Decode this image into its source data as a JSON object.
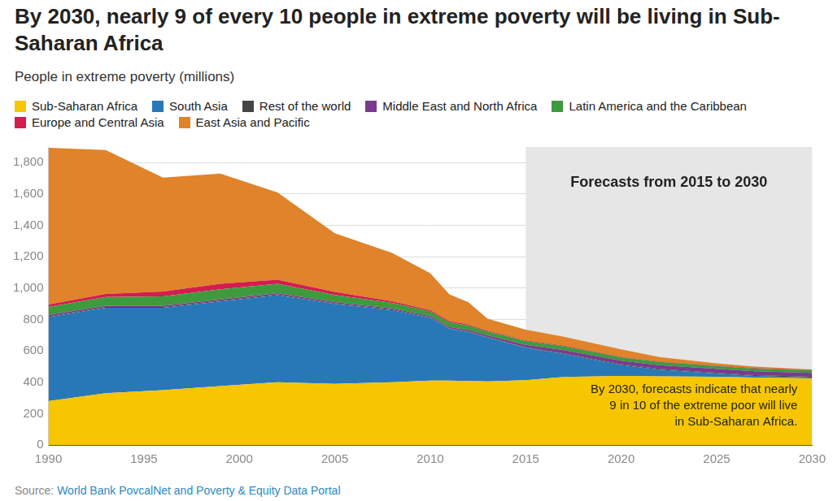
{
  "chart_data": {
    "type": "area",
    "title": "By 2030, nearly 9 of every 10 people in extreme poverty will be living in Sub-Saharan Africa",
    "subtitle": "People in extreme poverty (millions)",
    "x": [
      1990,
      1993,
      1996,
      1999,
      2002,
      2005,
      2008,
      2010,
      2011,
      2012,
      2013,
      2015,
      2017,
      2020,
      2022,
      2025,
      2027,
      2030
    ],
    "series": [
      {
        "name": "Sub-Saharan Africa",
        "color": "#f7c600",
        "values": [
          280,
          330,
          350,
          375,
          400,
          390,
          400,
          410,
          410,
          408,
          405,
          413,
          433,
          440,
          438,
          435,
          430,
          425
        ]
      },
      {
        "name": "South Asia",
        "color": "#2878b8",
        "values": [
          535,
          545,
          525,
          540,
          555,
          510,
          460,
          400,
          330,
          312,
          280,
          207,
          147,
          70,
          42,
          20,
          10,
          5
        ]
      },
      {
        "name": "Rest of the world",
        "color": "#454545",
        "values": [
          5,
          5,
          5,
          5,
          5,
          4,
          4,
          4,
          3,
          3,
          3,
          3,
          4,
          5,
          5,
          5,
          5,
          5
        ]
      },
      {
        "name": "Middle East and North Africa",
        "color": "#7b3a8f",
        "values": [
          10,
          8,
          8,
          8,
          8,
          7,
          7,
          8,
          9,
          10,
          11,
          15,
          20,
          22,
          24,
          25,
          25,
          25
        ]
      },
      {
        "name": "Latin America and the Caribbean",
        "color": "#3f9a3d",
        "values": [
          50,
          55,
          60,
          65,
          60,
          45,
          35,
          30,
          30,
          28,
          25,
          25,
          25,
          22,
          20,
          18,
          17,
          16
        ]
      },
      {
        "name": "Europe and Central Asia",
        "color": "#d51c4f",
        "values": [
          15,
          20,
          30,
          35,
          25,
          20,
          10,
          8,
          7,
          6,
          5,
          4,
          4,
          3,
          3,
          3,
          3,
          3
        ]
      },
      {
        "name": "East Asia and Pacific",
        "color": "#e0832a",
        "values": [
          1000,
          917,
          727,
          702,
          557,
          374,
          309,
          235,
          171,
          143,
          76,
          68,
          57,
          48,
          28,
          14,
          10,
          2
        ]
      }
    ],
    "xlim": [
      1990,
      2030
    ],
    "xticks": [
      1990,
      1995,
      2000,
      2005,
      2010,
      2015,
      2020,
      2025,
      2030
    ],
    "ylim": [
      0,
      1900
    ],
    "yticks": [
      0,
      200,
      400,
      600,
      800,
      {
        "value": 1000,
        "label": "1,000"
      },
      {
        "value": 1200,
        "label": "1,200"
      },
      {
        "value": 1400,
        "label": "1,400"
      },
      {
        "value": 1600,
        "label": "1,600"
      },
      {
        "value": 1800,
        "label": "1,800"
      }
    ],
    "grid": true,
    "stacked": true,
    "legend": "top",
    "annotations": [
      {
        "lines": [
          "Forecasts from 2015 to 2030"
        ],
        "x_range": [
          2015,
          2030
        ]
      },
      {
        "lines": [
          "By 2030, forecasts indicate that nearly",
          "9 in 10 of the extreme poor will live",
          "in Sub-Saharan Africa."
        ]
      }
    ],
    "source_label": "Source:",
    "source": "World Bank PovcalNet and Poverty & Equity Data Portal"
  }
}
